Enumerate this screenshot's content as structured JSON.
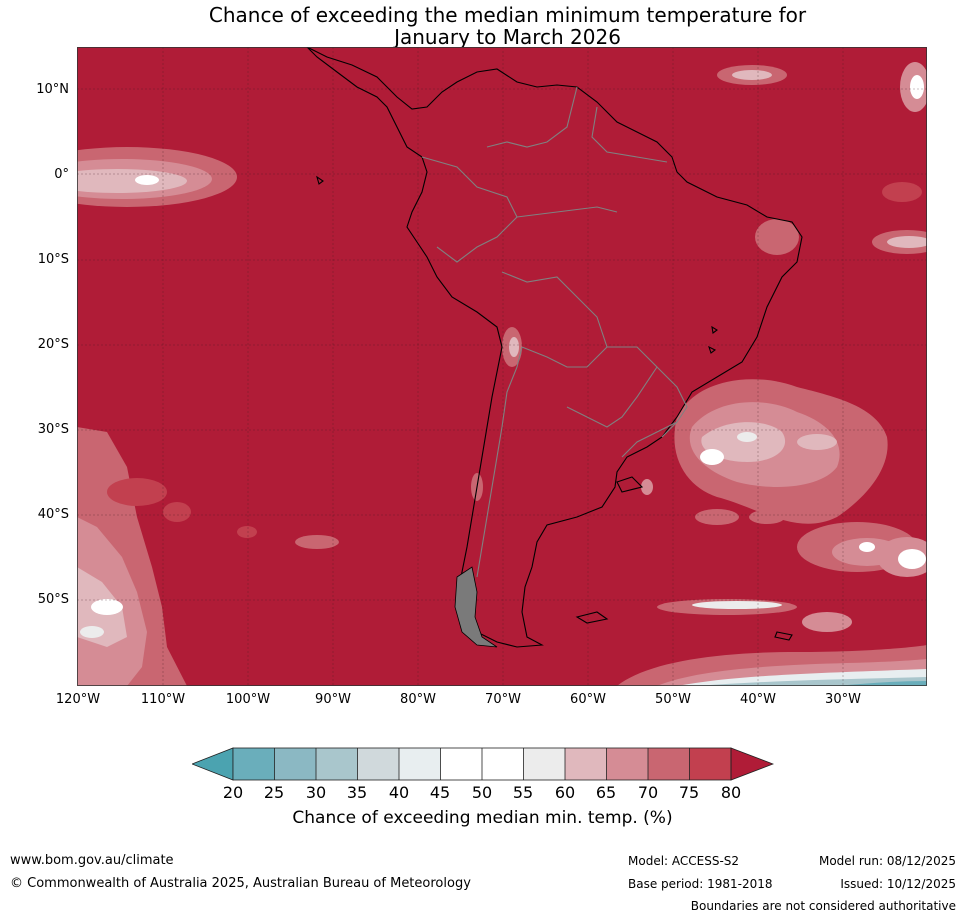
{
  "title": {
    "line1": "Chance of exceeding the median minimum temperature for",
    "line2": "January to March 2026"
  },
  "map": {
    "latitude_labels": [
      "10°N",
      "0°",
      "10°S",
      "20°S",
      "30°S",
      "40°S",
      "50°S"
    ],
    "longitude_labels": [
      "120°W",
      "110°W",
      "100°W",
      "90°W",
      "80°W",
      "70°W",
      "60°W",
      "50°W",
      "40°W",
      "30°W"
    ],
    "colors": {
      "above_80": "#b01c37",
      "band_75_80": "#c2404f",
      "band_70_75": "#c96671",
      "band_65_70": "#d58c95",
      "band_60_65": "#e0b8bd",
      "band_55_60": "#ececec",
      "band_50_55": "#ffffff",
      "band_45_50": "#ffffff",
      "band_40_45": "#e8eef0",
      "band_35_40": "#d0d9dc",
      "band_30_35": "#a9c6cc",
      "band_25_30": "#8bb8c3",
      "band_20_25": "#6aaebb",
      "below_20": "#4ba3b0",
      "coast": "#000000",
      "border": "#808080"
    }
  },
  "colorbar": {
    "ticks": [
      "20",
      "25",
      "30",
      "35",
      "40",
      "45",
      "50",
      "55",
      "60",
      "65",
      "70",
      "75",
      "80"
    ],
    "label": "Chance of exceeding median min. temp. (%)"
  },
  "footer": {
    "website": "www.bom.gov.au/climate",
    "copyright": "© Commonwealth of Australia 2025, Australian Bureau of Meteorology",
    "model": "Model: ACCESS-S2",
    "base_period": "Base period: 1981-2018",
    "model_run": "Model run: 08/12/2025",
    "issued": "Issued: 10/12/2025",
    "disclaimer": "Boundaries are not considered authoritative"
  }
}
